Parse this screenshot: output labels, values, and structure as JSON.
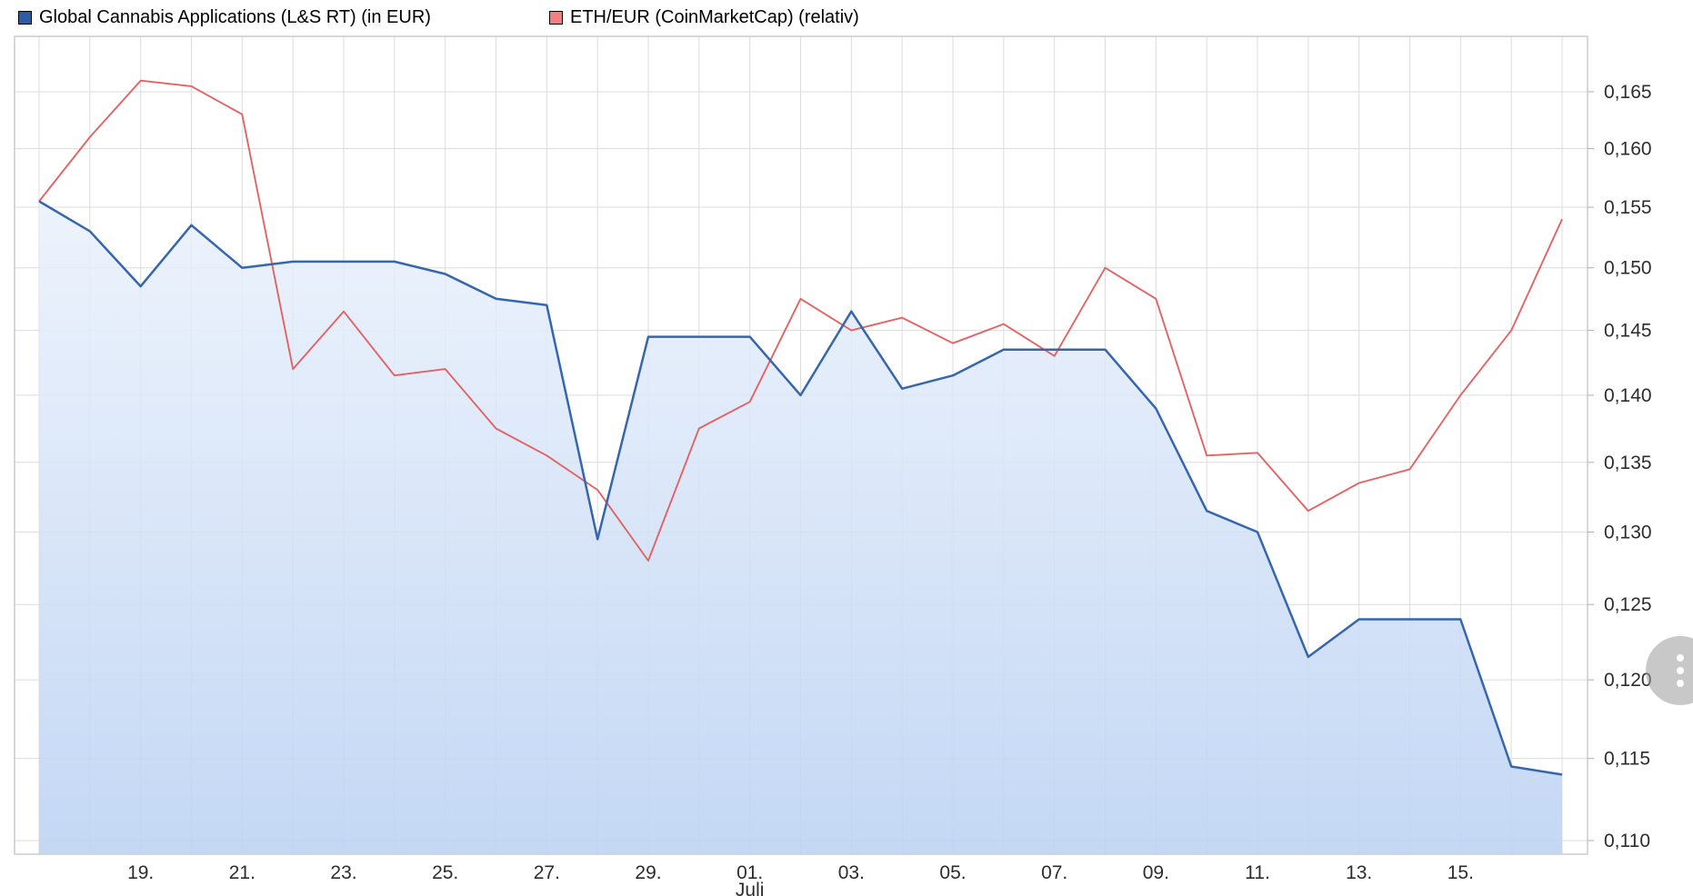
{
  "legend": [
    {
      "label": "Global Cannabis Applications (L&S RT) (in EUR)",
      "color": "#2a5ca8",
      "icon": "blue-series-swatch"
    },
    {
      "label": "ETH/EUR (CoinMarketCap) (relativ)",
      "color": "#f57e7e",
      "icon": "red-series-swatch"
    }
  ],
  "menu_button": {
    "icon": "kebab-menu-icon"
  },
  "chart_data": {
    "type": "line",
    "title": "",
    "x_month_label": "Juli",
    "x_tick_labels": [
      "19.",
      "21.",
      "23.",
      "25.",
      "27.",
      "29.",
      "01.",
      "03.",
      "05.",
      "07.",
      "09.",
      "11.",
      "13.",
      "15."
    ],
    "x_tick_day_indices": [
      2,
      4,
      6,
      8,
      10,
      12,
      14,
      16,
      18,
      20,
      22,
      24,
      26,
      28
    ],
    "month_label_day_index": 14,
    "y_scale": "log",
    "ylim": [
      0.11,
      0.165
    ],
    "y_tick_values": [
      0.165,
      0.16,
      0.155,
      0.15,
      0.145,
      0.14,
      0.135,
      0.13,
      0.125,
      0.12,
      0.115,
      0.11
    ],
    "y_tick_labels": [
      "0,165",
      "0,160",
      "0,155",
      "0,150",
      "0,145",
      "0,140",
      "0,135",
      "0,130",
      "0,125",
      "0,120",
      "0,115",
      "0,110"
    ],
    "grid": true,
    "legend_position": "top",
    "colors": {
      "grid": "#dcdcdc",
      "border": "#c4c4c4",
      "tick": "#adadad",
      "axis_text": "#2d2d2d",
      "blue_line": "#3566ae",
      "red_line": "#e05c5c",
      "area_top": "#eaf1fc",
      "area_bottom": "#bdd3f3"
    },
    "series": [
      {
        "name": "Global Cannabis Applications (L&S RT) (in EUR)",
        "color": "#3566ae",
        "fill": true,
        "values": [
          0.1555,
          0.153,
          0.1485,
          0.1535,
          0.15,
          0.1505,
          0.1505,
          0.1505,
          0.1495,
          0.1475,
          0.147,
          0.1295,
          0.1445,
          0.1445,
          0.1445,
          0.14,
          0.1465,
          0.1405,
          0.1415,
          0.1435,
          0.1435,
          0.1435,
          0.139,
          0.1315,
          0.13,
          0.1215,
          0.124,
          0.124,
          0.124,
          0.1145,
          0.114
        ]
      },
      {
        "name": "ETH/EUR (CoinMarketCap) (relativ)",
        "color": "#e05c5c",
        "fill": false,
        "values": [
          0.1555,
          0.161,
          0.166,
          0.1655,
          0.163,
          0.142,
          0.1465,
          0.1415,
          0.142,
          0.1375,
          0.1355,
          0.133,
          0.128,
          0.1375,
          0.1395,
          0.1475,
          0.145,
          0.146,
          0.144,
          0.1455,
          0.143,
          0.15,
          0.1475,
          0.1355,
          0.1357,
          0.1315,
          0.1335,
          0.1345,
          0.14,
          0.145,
          0.154
        ]
      }
    ]
  }
}
